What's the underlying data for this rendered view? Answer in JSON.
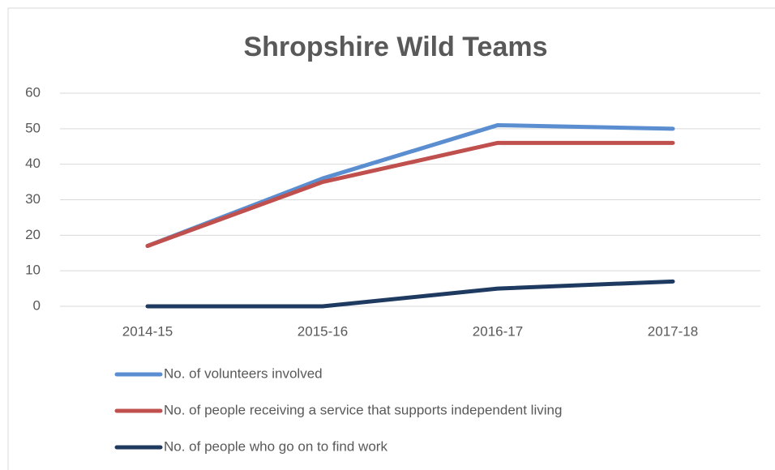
{
  "chart_data": {
    "type": "line",
    "title": "Shropshire Wild Teams",
    "categories": [
      "2014-15",
      "2015-16",
      "2016-17",
      "2017-18"
    ],
    "series": [
      {
        "name": "No. of volunteers involved",
        "color": "#5b8ed0",
        "values": [
          17,
          36,
          51,
          50
        ]
      },
      {
        "name": "No. of people receiving a service that supports independent living",
        "color": "#c0504d",
        "values": [
          17,
          35,
          46,
          46
        ]
      },
      {
        "name": "No. of people who go on to find work",
        "color": "#1f3a60",
        "values": [
          0,
          0,
          5,
          7
        ]
      }
    ],
    "ylim": [
      0,
      60
    ],
    "yticks": [
      0,
      10,
      20,
      30,
      40,
      50,
      60
    ],
    "grid": true,
    "legend": "bottom"
  }
}
